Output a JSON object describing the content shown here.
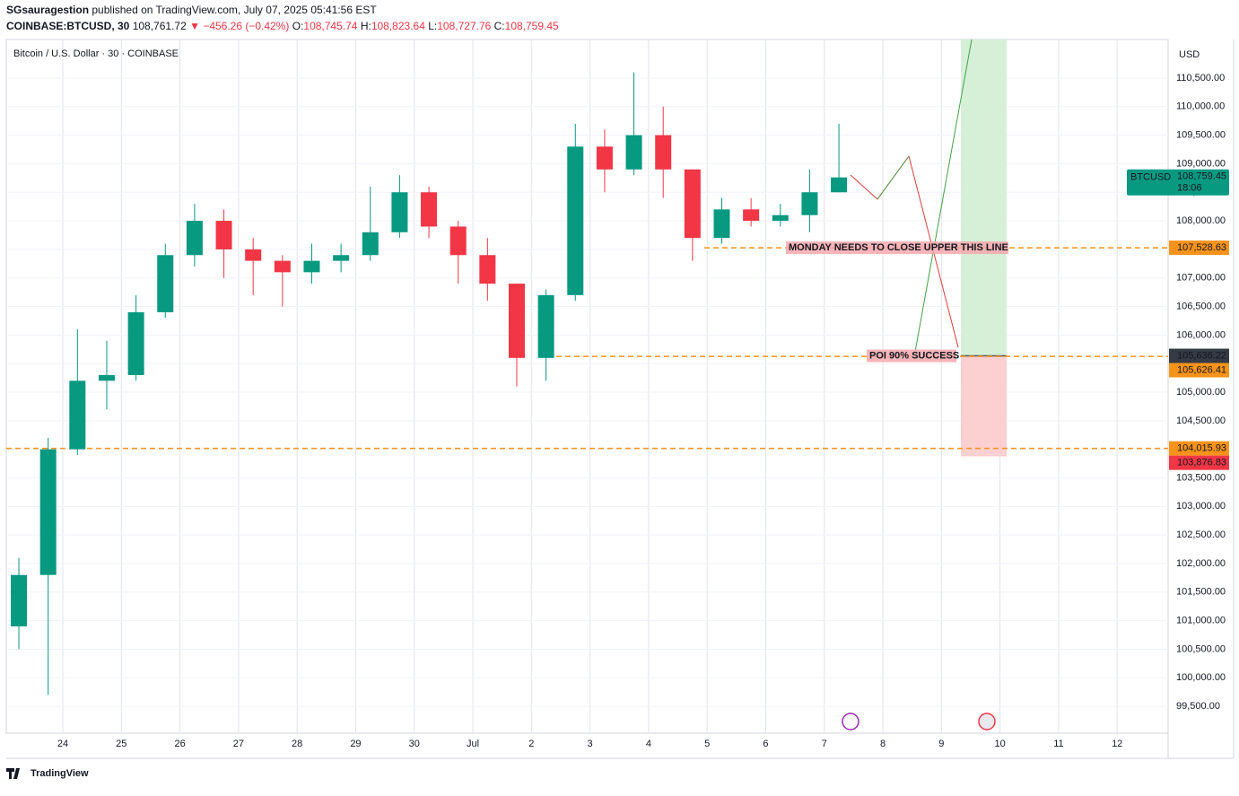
{
  "header": {
    "publisher": "SGsauragestion",
    "published": "published on TradingView.com, July 07, 2025 05:41:56 EST",
    "symbol": "COINBASE:BTCUSD, 30",
    "last": "108,761.72",
    "change": "▼ −456.26 (−0.42%)",
    "ohlc": [
      {
        "label": "O:",
        "value": "108,745.74"
      },
      {
        "label": "H:",
        "value": "108,823.64"
      },
      {
        "label": "L:",
        "value": "108,727.76"
      },
      {
        "label": "C:",
        "value": "108,759.45"
      }
    ]
  },
  "footer": {
    "brand": "TradingView"
  },
  "chart_data": {
    "type": "candlestick",
    "title": "Bitcoin / U.S. Dollar · 30 · COINBASE",
    "currency": "USD",
    "up_color": "#089981",
    "down_color": "#f23645",
    "grid": true,
    "x": [
      -0.75,
      -0.25,
      0.25,
      0.75,
      1.25,
      1.75,
      2.25,
      2.75,
      3.25,
      3.75,
      4.25,
      4.75,
      5.25,
      5.75,
      6.25,
      6.75,
      7.25,
      7.75,
      8.25,
      8.75,
      9.25,
      9.75,
      10.25,
      10.75,
      11.25,
      11.75,
      12.25,
      12.75,
      13.25
    ],
    "open": [
      100900,
      101800,
      104000,
      105200,
      105300,
      106400,
      107400,
      108000,
      107500,
      107300,
      107100,
      107300,
      107400,
      107800,
      108500,
      107900,
      107400,
      106900,
      105600,
      106700,
      109300,
      108900,
      109500,
      108900,
      107700,
      108200,
      108000,
      108100,
      108500
    ],
    "high": [
      102100,
      104200,
      106100,
      105900,
      106700,
      107600,
      108300,
      108200,
      107700,
      107400,
      107600,
      107600,
      108600,
      108800,
      108600,
      108000,
      107700,
      106900,
      106800,
      109700,
      109600,
      110600,
      110000,
      108900,
      108400,
      108400,
      108300,
      108900,
      109700
    ],
    "low": [
      100500,
      99700,
      103900,
      104700,
      105200,
      106300,
      107200,
      107000,
      106700,
      106500,
      106900,
      107100,
      107300,
      107700,
      107700,
      106900,
      106600,
      105100,
      105200,
      106600,
      108500,
      108800,
      108400,
      107300,
      107600,
      107900,
      107900,
      107800,
      108500
    ],
    "close": [
      101800,
      104000,
      105200,
      105300,
      106400,
      107400,
      108000,
      107500,
      107300,
      107100,
      107300,
      107400,
      107800,
      108500,
      107900,
      107400,
      106900,
      105600,
      106700,
      109300,
      108900,
      109500,
      108900,
      107700,
      108200,
      108000,
      108100,
      108500,
      108760
    ],
    "xlim": [
      -0.965,
      18.87
    ],
    "ylim": [
      99030,
      111175
    ],
    "xticks": [
      {
        "value": 0,
        "label": "24"
      },
      {
        "value": 1,
        "label": "25"
      },
      {
        "value": 2,
        "label": "26"
      },
      {
        "value": 3,
        "label": "27"
      },
      {
        "value": 4,
        "label": "28"
      },
      {
        "value": 5,
        "label": "29"
      },
      {
        "value": 6,
        "label": "30"
      },
      {
        "value": 7,
        "label": "Jul"
      },
      {
        "value": 8,
        "label": "2"
      },
      {
        "value": 9,
        "label": "3"
      },
      {
        "value": 10,
        "label": "4"
      },
      {
        "value": 11,
        "label": "5"
      },
      {
        "value": 12,
        "label": "6"
      },
      {
        "value": 13,
        "label": "7"
      },
      {
        "value": 14,
        "label": "8"
      },
      {
        "value": 15,
        "label": "9"
      },
      {
        "value": 16,
        "label": "10"
      },
      {
        "value": 17,
        "label": "11"
      },
      {
        "value": 18,
        "label": "12"
      }
    ],
    "yticks": [
      {
        "value": 99500,
        "label": "99,500.00"
      },
      {
        "value": 100000,
        "label": "100,000.00"
      },
      {
        "value": 100500,
        "label": "100,500.00"
      },
      {
        "value": 101000,
        "label": "101,000.00"
      },
      {
        "value": 101500,
        "label": "101,500.00"
      },
      {
        "value": 102000,
        "label": "102,000.00"
      },
      {
        "value": 102500,
        "label": "102,500.00"
      },
      {
        "value": 103000,
        "label": "103,000.00"
      },
      {
        "value": 103500,
        "label": "103,500.00"
      },
      {
        "value": 104000,
        "label": "104,000.00"
      },
      {
        "value": 104500,
        "label": "104,500.00"
      },
      {
        "value": 105000,
        "label": "105,000.00"
      },
      {
        "value": 105500,
        "label": "105,500.00"
      },
      {
        "value": 106000,
        "label": "106,000.00"
      },
      {
        "value": 106500,
        "label": "106,500.00"
      },
      {
        "value": 107000,
        "label": "107,000.00"
      },
      {
        "value": 107500,
        "label": "107,500.00"
      },
      {
        "value": 108000,
        "label": "108,000.00"
      },
      {
        "value": 108500,
        "label": "108,500.00"
      },
      {
        "value": 109000,
        "label": "109,000.00"
      },
      {
        "value": 109500,
        "label": "109,500.00"
      },
      {
        "value": 110000,
        "label": "110,000.00"
      },
      {
        "value": 110500,
        "label": "110,500.00"
      }
    ],
    "last_price": {
      "symbol": "BTCUSD",
      "value": 108759.45,
      "label": "108,759.45",
      "countdown": "18:06",
      "color": "#089981"
    },
    "levels": [
      {
        "value": 107528.63,
        "label": "107,528.63",
        "color": "#f7931a"
      },
      {
        "value": 105626.41,
        "label": "105,626.41",
        "color": "#f7931a"
      },
      {
        "value": 104015.93,
        "label": "104,015.93",
        "color": "#f7931a"
      }
    ],
    "position": {
      "entry": 105636.22,
      "entry_label": "105,636.22",
      "stop": 103876.83,
      "stop_label": "103,876.83"
    },
    "annotations": [
      "MONDAY NEEDS TO CLOSE UPPER THIS LINE",
      "POI 90% SUCCESS"
    ]
  }
}
